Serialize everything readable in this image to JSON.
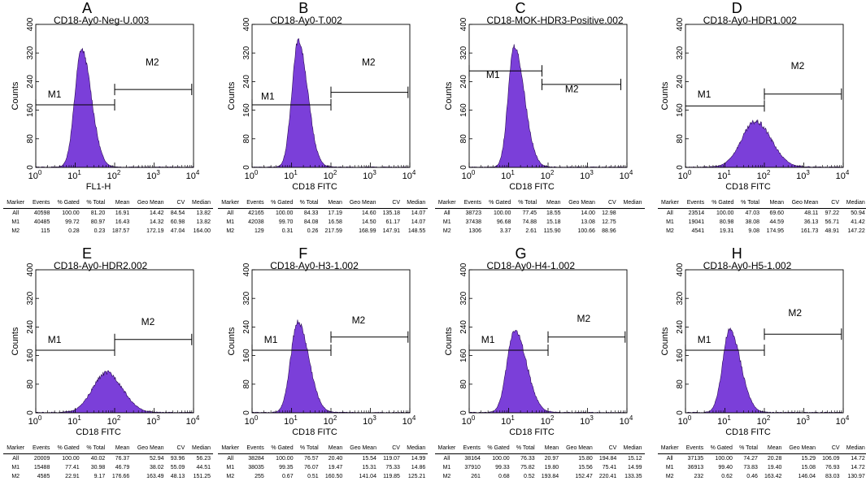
{
  "chart_data": [
    {
      "type": "histogram",
      "letter": "A",
      "title": "CD18-Ay0-Neg-U.003",
      "xlabel": "FL1-H",
      "ylabel": "Counts",
      "xscale": "log",
      "xlim": [
        1,
        10000
      ],
      "ylim": [
        0,
        400
      ],
      "yticks": [
        "0",
        "80",
        "160",
        "240",
        "320",
        "400"
      ],
      "xticks": [
        {
          "b": "10",
          "e": "0"
        },
        {
          "b": "10",
          "e": "1"
        },
        {
          "b": "10",
          "e": "2"
        },
        {
          "b": "10",
          "e": "3"
        },
        {
          "b": "10",
          "e": "4"
        }
      ],
      "fill_color": "#7B3FD9",
      "peak": {
        "log_center": 1.16,
        "height": 330,
        "sigma_left": 0.17,
        "sigma_right": 0.25
      },
      "markers": [
        {
          "label": "M1",
          "range": [
            1,
            100
          ],
          "y": 175,
          "label_at": [
            3,
            195
          ]
        },
        {
          "label": "M2",
          "range": [
            100,
            9000
          ],
          "y": 218,
          "label_at": [
            900,
            285
          ]
        }
      ],
      "table": {
        "headers": [
          "Marker",
          "Events",
          "% Gated",
          "% Total",
          "Mean",
          "Geo Mean",
          "CV",
          "Median"
        ],
        "rows": [
          [
            "All",
            "40598",
            "100.00",
            "81.20",
            "16.91",
            "14.42",
            "84.54",
            "13.82"
          ],
          [
            "M1",
            "40485",
            "99.72",
            "80.97",
            "16.43",
            "14.32",
            "60.98",
            "13.82"
          ],
          [
            "M2",
            "115",
            "0.28",
            "0.23",
            "187.57",
            "172.19",
            "47.04",
            "164.00"
          ]
        ]
      }
    },
    {
      "type": "histogram",
      "letter": "B",
      "title": "CD18-Ay0-T.002",
      "xlabel": "CD18 FITC",
      "ylabel": "Counts",
      "xscale": "log",
      "xlim": [
        1,
        10000
      ],
      "ylim": [
        0,
        400
      ],
      "yticks": [
        "0",
        "80",
        "160",
        "240",
        "320",
        "400"
      ],
      "xticks": [
        {
          "b": "10",
          "e": "0"
        },
        {
          "b": "10",
          "e": "1"
        },
        {
          "b": "10",
          "e": "2"
        },
        {
          "b": "10",
          "e": "3"
        },
        {
          "b": "10",
          "e": "4"
        }
      ],
      "fill_color": "#7B3FD9",
      "peak": {
        "log_center": 1.17,
        "height": 355,
        "sigma_left": 0.16,
        "sigma_right": 0.24
      },
      "markers": [
        {
          "label": "M1",
          "range": [
            1,
            100
          ],
          "y": 175,
          "label_at": [
            2.5,
            190
          ]
        },
        {
          "label": "M2",
          "range": [
            100,
            9000
          ],
          "y": 210,
          "label_at": [
            900,
            285
          ]
        }
      ],
      "table": {
        "headers": [
          "Marker",
          "Events",
          "% Gated",
          "% Total",
          "Mean",
          "Geo Mean",
          "CV",
          "Median"
        ],
        "rows": [
          [
            "All",
            "42165",
            "100.00",
            "84.33",
            "17.19",
            "14.60",
            "135.18",
            "14.07"
          ],
          [
            "M1",
            "42038",
            "99.70",
            "84.08",
            "16.58",
            "14.50",
            "61.17",
            "14.07"
          ],
          [
            "M2",
            "129",
            "0.31",
            "0.26",
            "217.59",
            "168.99",
            "147.91",
            "148.55"
          ]
        ]
      }
    },
    {
      "type": "histogram",
      "letter": "C",
      "title": "CD18-MOK-HDR3-Positive.002",
      "xlabel": "CD18 FITC",
      "ylabel": "Counts",
      "xscale": "log",
      "xlim": [
        1,
        10000
      ],
      "ylim": [
        0,
        400
      ],
      "yticks": [
        "0",
        "80",
        "160",
        "240",
        "320",
        "400"
      ],
      "xticks": [
        {
          "b": "10",
          "e": "0"
        },
        {
          "b": "10",
          "e": "1"
        },
        {
          "b": "10",
          "e": "2"
        },
        {
          "b": "10",
          "e": "3"
        },
        {
          "b": "10",
          "e": "4"
        }
      ],
      "fill_color": "#7B3FD9",
      "peak": {
        "log_center": 1.14,
        "height": 340,
        "sigma_left": 0.15,
        "sigma_right": 0.26
      },
      "markers": [
        {
          "label": "M1",
          "range": [
            1,
            70
          ],
          "y": 270,
          "label_at": [
            4,
            250
          ]
        },
        {
          "label": "M2",
          "range": [
            70,
            7000
          ],
          "y": 232,
          "label_at": [
            400,
            210
          ]
        }
      ],
      "table": {
        "headers": [
          "Marker",
          "Events",
          "% Gated",
          "% Total",
          "Mean",
          "Geo Mean",
          "CV",
          "Median"
        ],
        "rows": [
          [
            "All",
            "38723",
            "100.00",
            "77.45",
            "18.55",
            "14.00",
            "12.98",
            ""
          ],
          [
            "M1",
            "37438",
            "96.68",
            "74.88",
            "15.18",
            "13.08",
            "12.75",
            ""
          ],
          [
            "M2",
            "1306",
            "3.37",
            "2.61",
            "115.90",
            "100.66",
            "88.96",
            ""
          ]
        ]
      }
    },
    {
      "type": "histogram",
      "letter": "D",
      "title": "CD18-Ay0-HDR1.002",
      "xlabel": "CD18 FITC",
      "ylabel": "Counts",
      "xscale": "log",
      "xlim": [
        1,
        10000
      ],
      "ylim": [
        0,
        400
      ],
      "yticks": [
        "0",
        "80",
        "160",
        "240",
        "320",
        "400"
      ],
      "xticks": [
        {
          "b": "10",
          "e": "0"
        },
        {
          "b": "10",
          "e": "1"
        },
        {
          "b": "10",
          "e": "2"
        },
        {
          "b": "10",
          "e": "3"
        },
        {
          "b": "10",
          "e": "4"
        }
      ],
      "fill_color": "#7B3FD9",
      "peak": {
        "log_center": 1.78,
        "height": 128,
        "sigma_left": 0.36,
        "sigma_right": 0.4
      },
      "markers": [
        {
          "label": "M1",
          "range": [
            1,
            100
          ],
          "y": 172,
          "label_at": [
            3,
            195
          ]
        },
        {
          "label": "M2",
          "range": [
            100,
            9000
          ],
          "y": 205,
          "label_at": [
            700,
            275
          ]
        }
      ],
      "table": {
        "headers": [
          "Marker",
          "Events",
          "% Gated",
          "% Total",
          "Mean",
          "Geo Mean",
          "CV",
          "Median"
        ],
        "rows": [
          [
            "All",
            "23514",
            "100.00",
            "47.03",
            "69.60",
            "48.11",
            "97.22",
            "50.94"
          ],
          [
            "M1",
            "19041",
            "80.98",
            "38.08",
            "44.59",
            "36.13",
            "56.71",
            "41.42"
          ],
          [
            "M2",
            "4541",
            "19.31",
            "9.08",
            "174.95",
            "161.73",
            "48.91",
            "147.22"
          ]
        ]
      }
    },
    {
      "type": "histogram",
      "letter": "E",
      "title": "CD18-Ay0-HDR2.002",
      "xlabel": "CD18 FITC",
      "ylabel": "Counts",
      "xscale": "log",
      "xlim": [
        1,
        10000
      ],
      "ylim": [
        0,
        400
      ],
      "yticks": [
        "0",
        "80",
        "160",
        "240",
        "320",
        "400"
      ],
      "xticks": [
        {
          "b": "10",
          "e": "0"
        },
        {
          "b": "10",
          "e": "1"
        },
        {
          "b": "10",
          "e": "2"
        },
        {
          "b": "10",
          "e": "3"
        },
        {
          "b": "10",
          "e": "4"
        }
      ],
      "fill_color": "#7B3FD9",
      "peak": {
        "log_center": 1.8,
        "height": 112,
        "sigma_left": 0.36,
        "sigma_right": 0.4
      },
      "markers": [
        {
          "label": "M1",
          "range": [
            1,
            100
          ],
          "y": 175,
          "label_at": [
            3,
            195
          ]
        },
        {
          "label": "M2",
          "range": [
            100,
            9000
          ],
          "y": 205,
          "label_at": [
            700,
            245
          ]
        }
      ],
      "table": {
        "headers": [
          "Marker",
          "Events",
          "% Gated",
          "% Total",
          "Mean",
          "Geo Mean",
          "CV",
          "Median"
        ],
        "rows": [
          [
            "All",
            "20009",
            "100.00",
            "40.02",
            "76.37",
            "52.94",
            "93.96",
            "56.23"
          ],
          [
            "M1",
            "15488",
            "77.41",
            "30.98",
            "46.79",
            "38.02",
            "55.09",
            "44.51"
          ],
          [
            "M2",
            "4585",
            "22.91",
            "9.17",
            "176.66",
            "163.49",
            "48.13",
            "151.25"
          ]
        ]
      }
    },
    {
      "type": "histogram",
      "letter": "F",
      "title": "CD18-Ay0-H3-1.002",
      "xlabel": "CD18 FITC",
      "ylabel": "Counts",
      "xscale": "log",
      "xlim": [
        1,
        10000
      ],
      "ylim": [
        0,
        400
      ],
      "yticks": [
        "0",
        "80",
        "160",
        "240",
        "320",
        "400"
      ],
      "xticks": [
        {
          "b": "10",
          "e": "0"
        },
        {
          "b": "10",
          "e": "1"
        },
        {
          "b": "10",
          "e": "2"
        },
        {
          "b": "10",
          "e": "3"
        },
        {
          "b": "10",
          "e": "4"
        }
      ],
      "fill_color": "#7B3FD9",
      "peak": {
        "log_center": 1.16,
        "height": 255,
        "sigma_left": 0.18,
        "sigma_right": 0.28
      },
      "markers": [
        {
          "label": "M1",
          "range": [
            1,
            100
          ],
          "y": 175,
          "label_at": [
            3,
            195
          ]
        },
        {
          "label": "M2",
          "range": [
            100,
            9000
          ],
          "y": 212,
          "label_at": [
            500,
            250
          ]
        }
      ],
      "table": {
        "headers": [
          "Marker",
          "Events",
          "% Gated",
          "% Total",
          "Mean",
          "Geo Mean",
          "CV",
          "Median"
        ],
        "rows": [
          [
            "All",
            "38284",
            "100.00",
            "76.57",
            "20.40",
            "15.54",
            "119.07",
            "14.99"
          ],
          [
            "M1",
            "38035",
            "99.35",
            "76.07",
            "19.47",
            "15.31",
            "75.33",
            "14.86"
          ],
          [
            "M2",
            "255",
            "0.67",
            "0.51",
            "160.50",
            "141.04",
            "119.85",
            "125.21"
          ]
        ]
      }
    },
    {
      "type": "histogram",
      "letter": "G",
      "title": "CD18-Ay0-H4-1.002",
      "xlabel": "CD18 FITC",
      "ylabel": "Counts",
      "xscale": "log",
      "xlim": [
        1,
        10000
      ],
      "ylim": [
        0,
        400
      ],
      "yticks": [
        "0",
        "80",
        "160",
        "240",
        "320",
        "400"
      ],
      "xticks": [
        {
          "b": "10",
          "e": "0"
        },
        {
          "b": "10",
          "e": "1"
        },
        {
          "b": "10",
          "e": "2"
        },
        {
          "b": "10",
          "e": "3"
        },
        {
          "b": "10",
          "e": "4"
        }
      ],
      "fill_color": "#7B3FD9",
      "peak": {
        "log_center": 1.15,
        "height": 232,
        "sigma_left": 0.19,
        "sigma_right": 0.3
      },
      "markers": [
        {
          "label": "M1",
          "range": [
            1,
            100
          ],
          "y": 175,
          "label_at": [
            3,
            195
          ]
        },
        {
          "label": "M2",
          "range": [
            100,
            9000
          ],
          "y": 212,
          "label_at": [
            800,
            255
          ]
        }
      ],
      "table": {
        "headers": [
          "Marker",
          "Events",
          "% Gated",
          "% Total",
          "Mean",
          "Geo Mean",
          "CV",
          "Median"
        ],
        "rows": [
          [
            "All",
            "38164",
            "100.00",
            "76.33",
            "20.97",
            "15.80",
            "194.84",
            "15.12"
          ],
          [
            "M1",
            "37910",
            "99.33",
            "75.82",
            "19.80",
            "15.56",
            "75.41",
            "14.99"
          ],
          [
            "M2",
            "261",
            "0.68",
            "0.52",
            "193.84",
            "152.47",
            "220.41",
            "133.35"
          ]
        ]
      }
    },
    {
      "type": "histogram",
      "letter": "H",
      "title": "CD18-Ay0-H5-1.002",
      "xlabel": "CD18 FITC",
      "ylabel": "Counts",
      "xscale": "log",
      "xlim": [
        1,
        10000
      ],
      "ylim": [
        0,
        400
      ],
      "yticks": [
        "0",
        "80",
        "160",
        "240",
        "320",
        "400"
      ],
      "xticks": [
        {
          "b": "10",
          "e": "0"
        },
        {
          "b": "10",
          "e": "1"
        },
        {
          "b": "10",
          "e": "2"
        },
        {
          "b": "10",
          "e": "3"
        },
        {
          "b": "10",
          "e": "4"
        }
      ],
      "fill_color": "#7B3FD9",
      "peak": {
        "log_center": 1.12,
        "height": 232,
        "sigma_left": 0.18,
        "sigma_right": 0.28
      },
      "markers": [
        {
          "label": "M1",
          "range": [
            1,
            100
          ],
          "y": 175,
          "label_at": [
            3,
            195
          ]
        },
        {
          "label": "M2",
          "range": [
            100,
            9000
          ],
          "y": 220,
          "label_at": [
            600,
            270
          ]
        }
      ],
      "table": {
        "headers": [
          "Marker",
          "Events",
          "% Gated",
          "% Total",
          "Mean",
          "Geo Mean",
          "CV",
          "Median"
        ],
        "rows": [
          [
            "All",
            "37135",
            "100.00",
            "74.27",
            "20.28",
            "15.29",
            "106.09",
            "14.72"
          ],
          [
            "M1",
            "36913",
            "99.40",
            "73.83",
            "19.40",
            "15.08",
            "76.93",
            "14.72"
          ],
          [
            "M2",
            "232",
            "0.62",
            "0.46",
            "163.42",
            "146.04",
            "83.03",
            "130.97"
          ]
        ]
      }
    }
  ]
}
